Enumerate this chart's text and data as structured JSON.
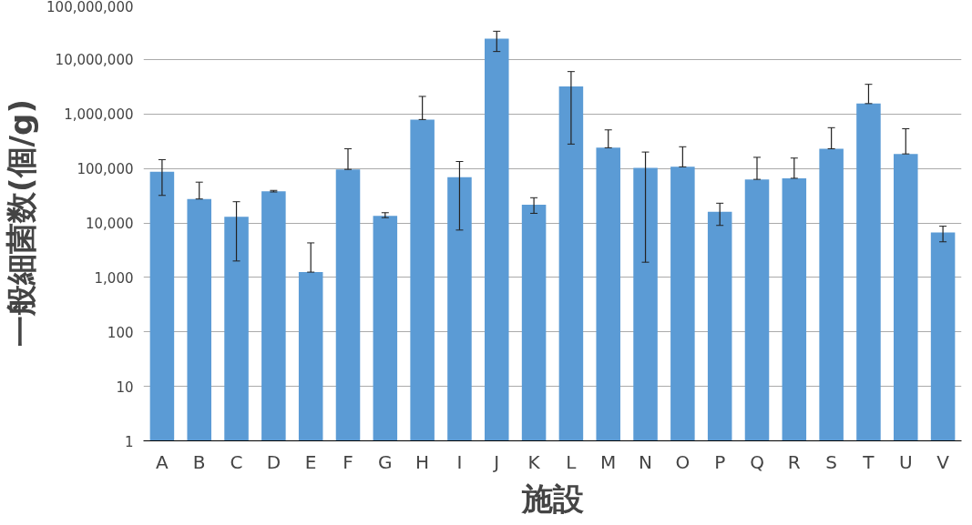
{
  "chart_data": {
    "type": "bar",
    "xlabel": "施設",
    "ylabel": "一般細菌数(個/g)",
    "categories": [
      "A",
      "B",
      "C",
      "D",
      "E",
      "F",
      "G",
      "H",
      "I",
      "J",
      "K",
      "L",
      "M",
      "N",
      "O",
      "P",
      "Q",
      "R",
      "S",
      "T",
      "U",
      "V"
    ],
    "values": [
      87000,
      27500,
      13000,
      38000,
      1250,
      96000,
      13500,
      790000,
      69000,
      24000000,
      21500,
      3200000,
      240000,
      102000,
      107000,
      16000,
      63000,
      66000,
      230000,
      1550000,
      185000,
      6700
    ],
    "errors": [
      [
        32000,
        145000
      ],
      [
        27500,
        56000
      ],
      [
        2000,
        24500
      ],
      [
        37000,
        39500
      ],
      [
        1250,
        4300
      ],
      [
        96000,
        230000
      ],
      [
        12500,
        15400
      ],
      [
        790000,
        2100000
      ],
      [
        7400,
        134000
      ],
      [
        14000000,
        33000000
      ],
      [
        15000,
        29000
      ],
      [
        280000,
        6000000
      ],
      [
        240000,
        510000
      ],
      [
        1900,
        200000
      ],
      [
        107000,
        250000
      ],
      [
        9000,
        23000
      ],
      [
        63000,
        160000
      ],
      [
        66000,
        155000
      ],
      [
        230000,
        560000
      ],
      [
        1550000,
        3500000
      ],
      [
        185000,
        535000
      ],
      [
        4500,
        8700
      ]
    ],
    "color": "#5b9bd5",
    "log": true,
    "ylim": [
      1,
      100000000
    ],
    "yticks": [
      {
        "value": 1,
        "label": "1"
      },
      {
        "value": 10,
        "label": "10"
      },
      {
        "value": 100,
        "label": "100"
      },
      {
        "value": 1000,
        "label": "1,000"
      },
      {
        "value": 10000,
        "label": "10,000"
      },
      {
        "value": 100000,
        "label": "100,000"
      },
      {
        "value": 1000000,
        "label": "1,000,000"
      },
      {
        "value": 10000000,
        "label": "10,000,000"
      },
      {
        "value": 100000000,
        "label": "100,000,000"
      }
    ],
    "grid": "y"
  }
}
